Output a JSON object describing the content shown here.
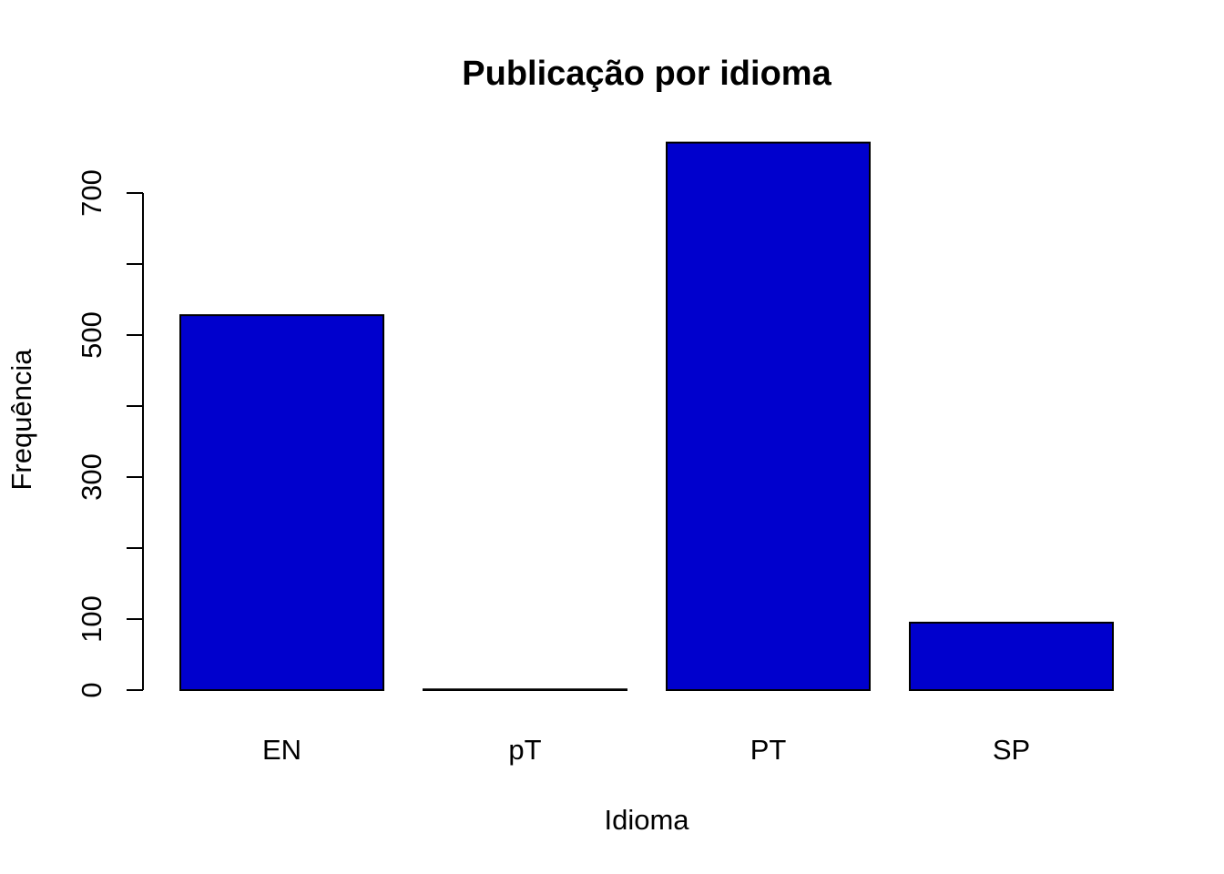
{
  "chart_data": {
    "type": "bar",
    "title": "Publicação por idioma",
    "xlabel": "Idioma",
    "ylabel": "Frequência",
    "categories": [
      "EN",
      "pT",
      "PT",
      "SP"
    ],
    "values": [
      528,
      1,
      771,
      95
    ],
    "ylim": [
      0,
      771
    ],
    "yticks": [
      0,
      100,
      200,
      300,
      400,
      500,
      600,
      700
    ],
    "ytick_labels": [
      "0",
      "100",
      "",
      "300",
      "",
      "500",
      "",
      "700"
    ],
    "bar_color": "#0000CD",
    "grid": false,
    "legend": "none"
  }
}
